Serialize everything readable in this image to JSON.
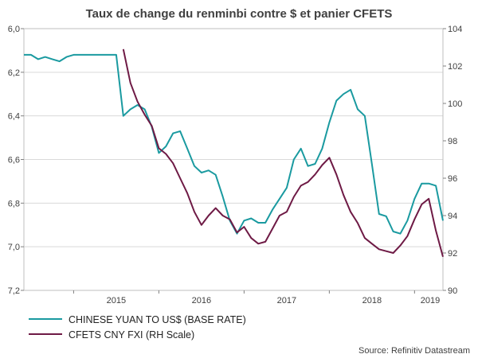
{
  "chart_data": {
    "type": "line",
    "title": "Taux de change du renminbi contre $ et panier CFETS",
    "source": "Source: Refinitiv Datastream",
    "x_ticks": [
      "2015",
      "2016",
      "2017",
      "2018",
      "2019"
    ],
    "x_range": [
      "2014-06",
      "2019-05"
    ],
    "y_left": {
      "min": 6.0,
      "max": 7.2,
      "inverted": true,
      "ticks": [
        "6,0",
        "6,2",
        "6,4",
        "6,6",
        "6,8",
        "7,0",
        "7,2"
      ]
    },
    "y_right": {
      "min": 90,
      "max": 104,
      "ticks": [
        "104",
        "102",
        "100",
        "98",
        "96",
        "94",
        "92",
        "90"
      ]
    },
    "grid": "horizontal",
    "legend_position": "bottom-left",
    "colors": {
      "usd": "#1a9aa0",
      "cfets": "#6e1a45"
    },
    "series": [
      {
        "name": "CHINESE YUAN TO US$ (BASE RATE)",
        "axis": "left",
        "points": [
          [
            "2014-06",
            6.12
          ],
          [
            "2014-07",
            6.12
          ],
          [
            "2014-08",
            6.14
          ],
          [
            "2014-09",
            6.13
          ],
          [
            "2014-10",
            6.14
          ],
          [
            "2014-11",
            6.15
          ],
          [
            "2014-12",
            6.13
          ],
          [
            "2015-01",
            6.12
          ],
          [
            "2015-02",
            6.12
          ],
          [
            "2015-03",
            6.12
          ],
          [
            "2015-04",
            6.12
          ],
          [
            "2015-05",
            6.12
          ],
          [
            "2015-06",
            6.12
          ],
          [
            "2015-07",
            6.12
          ],
          [
            "2015-08",
            6.4
          ],
          [
            "2015-09",
            6.37
          ],
          [
            "2015-10",
            6.35
          ],
          [
            "2015-11",
            6.37
          ],
          [
            "2015-12",
            6.45
          ],
          [
            "2016-01",
            6.57
          ],
          [
            "2016-02",
            6.54
          ],
          [
            "2016-03",
            6.48
          ],
          [
            "2016-04",
            6.47
          ],
          [
            "2016-05",
            6.55
          ],
          [
            "2016-06",
            6.63
          ],
          [
            "2016-07",
            6.66
          ],
          [
            "2016-08",
            6.65
          ],
          [
            "2016-09",
            6.67
          ],
          [
            "2016-10",
            6.77
          ],
          [
            "2016-11",
            6.88
          ],
          [
            "2016-12",
            6.94
          ],
          [
            "2017-01",
            6.88
          ],
          [
            "2017-02",
            6.87
          ],
          [
            "2017-03",
            6.89
          ],
          [
            "2017-04",
            6.89
          ],
          [
            "2017-05",
            6.83
          ],
          [
            "2017-06",
            6.78
          ],
          [
            "2017-07",
            6.73
          ],
          [
            "2017-08",
            6.6
          ],
          [
            "2017-09",
            6.55
          ],
          [
            "2017-10",
            6.63
          ],
          [
            "2017-11",
            6.62
          ],
          [
            "2017-12",
            6.55
          ],
          [
            "2018-01",
            6.43
          ],
          [
            "2018-02",
            6.33
          ],
          [
            "2018-03",
            6.3
          ],
          [
            "2018-04",
            6.28
          ],
          [
            "2018-05",
            6.37
          ],
          [
            "2018-06",
            6.4
          ],
          [
            "2018-07",
            6.62
          ],
          [
            "2018-08",
            6.85
          ],
          [
            "2018-09",
            6.86
          ],
          [
            "2018-10",
            6.93
          ],
          [
            "2018-11",
            6.94
          ],
          [
            "2018-12",
            6.88
          ],
          [
            "2019-01",
            6.78
          ],
          [
            "2019-02",
            6.71
          ],
          [
            "2019-03",
            6.71
          ],
          [
            "2019-04",
            6.72
          ],
          [
            "2019-05",
            6.88
          ]
        ]
      },
      {
        "name": "CFETS CNY FXI (RH Scale)",
        "axis": "right",
        "points": [
          [
            "2015-08",
            102.9
          ],
          [
            "2015-09",
            101.1
          ],
          [
            "2015-10",
            100.1
          ],
          [
            "2015-11",
            99.4
          ],
          [
            "2015-12",
            98.8
          ],
          [
            "2016-01",
            97.6
          ],
          [
            "2016-02",
            97.3
          ],
          [
            "2016-03",
            96.8
          ],
          [
            "2016-04",
            96.0
          ],
          [
            "2016-05",
            95.2
          ],
          [
            "2016-06",
            94.2
          ],
          [
            "2016-07",
            93.5
          ],
          [
            "2016-08",
            94.0
          ],
          [
            "2016-09",
            94.4
          ],
          [
            "2016-10",
            94.0
          ],
          [
            "2016-11",
            93.8
          ],
          [
            "2016-12",
            93.1
          ],
          [
            "2017-01",
            93.4
          ],
          [
            "2017-02",
            92.8
          ],
          [
            "2017-03",
            92.5
          ],
          [
            "2017-04",
            92.6
          ],
          [
            "2017-05",
            93.3
          ],
          [
            "2017-06",
            94.0
          ],
          [
            "2017-07",
            94.2
          ],
          [
            "2017-08",
            95.0
          ],
          [
            "2017-09",
            95.6
          ],
          [
            "2017-10",
            95.8
          ],
          [
            "2017-11",
            96.2
          ],
          [
            "2017-12",
            96.7
          ],
          [
            "2018-01",
            97.1
          ],
          [
            "2018-02",
            96.2
          ],
          [
            "2018-03",
            95.1
          ],
          [
            "2018-04",
            94.2
          ],
          [
            "2018-05",
            93.6
          ],
          [
            "2018-06",
            92.8
          ],
          [
            "2018-07",
            92.5
          ],
          [
            "2018-08",
            92.2
          ],
          [
            "2018-09",
            92.1
          ],
          [
            "2018-10",
            92.0
          ],
          [
            "2018-11",
            92.4
          ],
          [
            "2018-12",
            92.9
          ],
          [
            "2019-01",
            93.8
          ],
          [
            "2019-02",
            94.6
          ],
          [
            "2019-03",
            94.9
          ],
          [
            "2019-04",
            93.2
          ],
          [
            "2019-05",
            91.8
          ]
        ]
      }
    ]
  }
}
